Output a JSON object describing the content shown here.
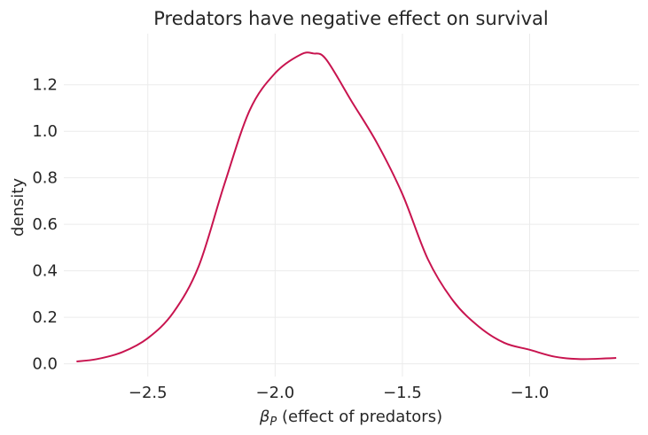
{
  "chart_data": {
    "type": "line",
    "title": "Predators have negative effect on survival",
    "xlabel_symbol": "β",
    "xlabel_subscript": "P",
    "xlabel_text": " (effect of predators)",
    "ylabel": "density",
    "xlim": [
      -2.83,
      -0.57
    ],
    "ylim": [
      -0.055,
      1.42
    ],
    "xticks": [
      -2.5,
      -2.0,
      -1.5,
      -1.0
    ],
    "xtick_labels": [
      "−2.5",
      "−2.0",
      "−1.5",
      "−1.0"
    ],
    "yticks": [
      0.0,
      0.2,
      0.4,
      0.6,
      0.8,
      1.0,
      1.2
    ],
    "ytick_labels": [
      "0.0",
      "0.2",
      "0.4",
      "0.6",
      "0.8",
      "1.0",
      "1.2"
    ],
    "grid": true,
    "series": [
      {
        "name": "density",
        "color": "#c8144f",
        "x": [
          -2.78,
          -2.7,
          -2.6,
          -2.5,
          -2.4,
          -2.3,
          -2.2,
          -2.1,
          -2.0,
          -1.9,
          -1.85,
          -1.8,
          -1.7,
          -1.6,
          -1.5,
          -1.4,
          -1.3,
          -1.2,
          -1.1,
          -1.0,
          -0.9,
          -0.8,
          -0.7,
          -0.66
        ],
        "y": [
          0.01,
          0.02,
          0.05,
          0.11,
          0.22,
          0.42,
          0.77,
          1.09,
          1.25,
          1.33,
          1.335,
          1.31,
          1.13,
          0.95,
          0.73,
          0.45,
          0.27,
          0.16,
          0.09,
          0.06,
          0.03,
          0.02,
          0.023,
          0.025
        ]
      }
    ]
  }
}
